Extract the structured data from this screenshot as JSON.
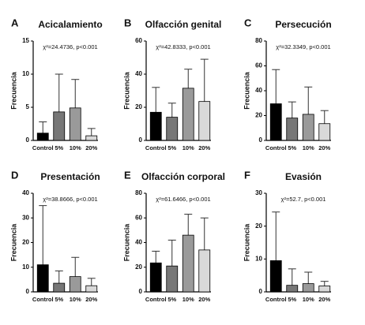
{
  "chart_data": [
    {
      "type": "bar",
      "panel_label": "A",
      "title": "Acicalamiento",
      "ylabel": "Frecuencia",
      "annotation": "χ²=24.4736, p<0.001",
      "categories": [
        "Control",
        "5%",
        "10%",
        "20%"
      ],
      "values": [
        1.1,
        4.3,
        4.9,
        0.7
      ],
      "errors": [
        1.7,
        5.7,
        4.3,
        1.1
      ],
      "colors": [
        "#000000",
        "#777777",
        "#9a9a9a",
        "#d9d9d9"
      ],
      "ylim": [
        0,
        15
      ],
      "yticks": [
        0,
        5,
        10,
        15
      ]
    },
    {
      "type": "bar",
      "panel_label": "B",
      "title": "Olfacción genital",
      "ylabel": "Frecuencia",
      "annotation": "χ²=42.8333, p<0.001",
      "categories": [
        "Control",
        "5%",
        "10%",
        "20%"
      ],
      "values": [
        17,
        14,
        31.5,
        23.5
      ],
      "errors": [
        15,
        8.5,
        11.5,
        25.5
      ],
      "colors": [
        "#000000",
        "#777777",
        "#9a9a9a",
        "#d9d9d9"
      ],
      "ylim": [
        0,
        60
      ],
      "yticks": [
        0,
        20,
        40,
        60
      ]
    },
    {
      "type": "bar",
      "panel_label": "C",
      "title": "Persecución",
      "ylabel": "Frecuencia",
      "annotation": "χ²=32.3349, p<0.001",
      "categories": [
        "Control",
        "5%",
        "10%",
        "20%"
      ],
      "values": [
        29.5,
        18,
        21,
        13.5
      ],
      "errors": [
        27.5,
        13,
        22,
        10.5
      ],
      "colors": [
        "#000000",
        "#777777",
        "#9a9a9a",
        "#d9d9d9"
      ],
      "ylim": [
        0,
        80
      ],
      "yticks": [
        0,
        20,
        40,
        60,
        80
      ]
    },
    {
      "type": "bar",
      "panel_label": "D",
      "title": "Presentación",
      "ylabel": "Frecuencia",
      "annotation": "χ²=38.8666, p<0.001",
      "categories": [
        "Control",
        "5%",
        "10%",
        "20%"
      ],
      "values": [
        11,
        3.5,
        6.2,
        2.5
      ],
      "errors": [
        24,
        5,
        7.8,
        3
      ],
      "colors": [
        "#000000",
        "#777777",
        "#9a9a9a",
        "#d9d9d9"
      ],
      "ylim": [
        0,
        40
      ],
      "yticks": [
        0,
        10,
        20,
        30,
        40
      ]
    },
    {
      "type": "bar",
      "panel_label": "E",
      "title": "Olfacción corporal",
      "ylabel": "Frecuencia",
      "annotation": "χ²=61.6466, p<0.001",
      "categories": [
        "Control",
        "5%",
        "10%",
        "20%"
      ],
      "values": [
        23.5,
        21,
        46,
        34
      ],
      "errors": [
        9.5,
        21,
        17,
        26
      ],
      "colors": [
        "#000000",
        "#777777",
        "#9a9a9a",
        "#d9d9d9"
      ],
      "ylim": [
        0,
        80
      ],
      "yticks": [
        0,
        20,
        40,
        60,
        80
      ]
    },
    {
      "type": "bar",
      "panel_label": "F",
      "title": "Evasión",
      "ylabel": "Frecuencia",
      "annotation": "χ²=52.7, p<0.001",
      "categories": [
        "Control",
        "5%",
        "10%",
        "20%"
      ],
      "values": [
        9.5,
        2,
        2.5,
        1.8
      ],
      "errors": [
        14.8,
        5,
        3.5,
        1.4
      ],
      "colors": [
        "#000000",
        "#777777",
        "#9a9a9a",
        "#d9d9d9"
      ],
      "ylim": [
        0,
        30
      ],
      "yticks": [
        0,
        10,
        20,
        30
      ]
    }
  ]
}
